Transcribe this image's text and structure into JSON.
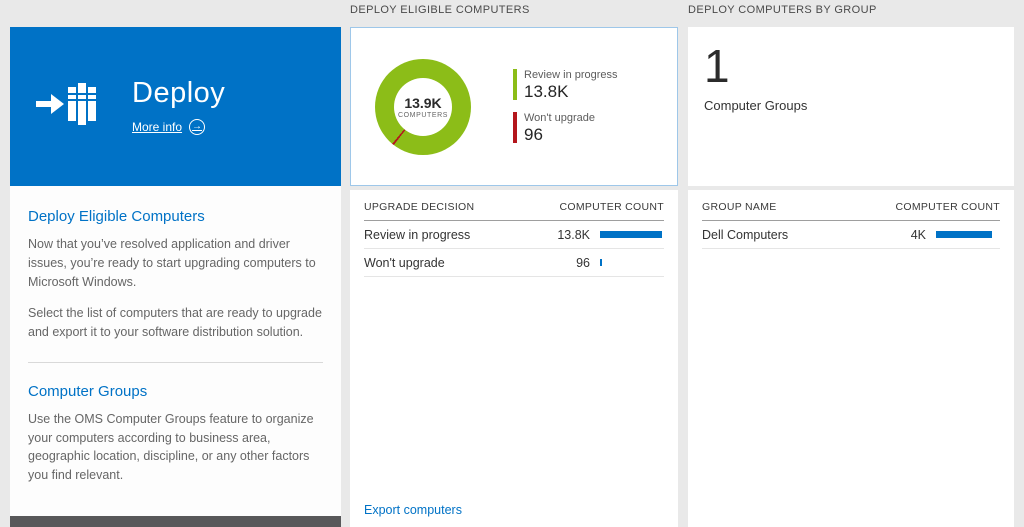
{
  "colors": {
    "tile_blue": "#0072c6",
    "bar_blue": "#0072c6",
    "green": "#8cbd18",
    "red": "#b4161c",
    "footer_dark": "#58585a"
  },
  "left_tile": {
    "title": "Deploy",
    "more_info_label": "More info",
    "arrow_glyph": "→"
  },
  "left_panel": {
    "section1": {
      "heading": "Deploy Eligible Computers",
      "para1": "Now that you’ve resolved application and driver issues, you’re ready to start upgrading computers to Microsoft Windows.",
      "para2": "Select the list of computers that are ready to upgrade and export it to your software distribution solution."
    },
    "section2": {
      "heading": "Computer Groups",
      "para1": "Use the OMS Computer Groups feature to organize your computers according to business area, geographic location, discipline, or any other factors you find relevant."
    }
  },
  "middle": {
    "header": "DEPLOY ELIGIBLE COMPUTERS",
    "donut": {
      "center_value": "13.9K",
      "center_label": "COMPUTERS",
      "legend": [
        {
          "label": "Review in progress",
          "value": "13.8K",
          "color": "#8cbd18"
        },
        {
          "label": "Won't upgrade",
          "value": "96",
          "color": "#b4161c"
        }
      ]
    },
    "table": {
      "col_left": "UPGRADE DECISION",
      "col_right": "COMPUTER COUNT",
      "rows": [
        {
          "label": "Review in progress",
          "value": "13.8K",
          "bar_pct": 97
        },
        {
          "label": "Won't upgrade",
          "value": "96",
          "bar_pct": 2
        }
      ]
    },
    "export_label": "Export computers"
  },
  "right": {
    "header": "DEPLOY COMPUTERS BY GROUP",
    "summary": {
      "count": "1",
      "label": "Computer Groups"
    },
    "table": {
      "col_left": "GROUP NAME",
      "col_right": "COMPUTER COUNT",
      "rows": [
        {
          "label": "Dell Computers",
          "value": "4K",
          "bar_pct": 88
        }
      ]
    }
  },
  "chart_data": [
    {
      "type": "pie",
      "title": "Deploy Eligible Computers",
      "center_value": "13.9K",
      "center_label": "COMPUTERS",
      "slices": [
        {
          "label": "Review in progress",
          "value": 13800,
          "pct": 99.3,
          "color": "#8cbd18"
        },
        {
          "label": "Won't upgrade",
          "value": 96,
          "pct": 0.7,
          "color": "#b4161c"
        }
      ],
      "legend_position": "right"
    },
    {
      "type": "bar",
      "title": "Upgrade Decision",
      "categories": [
        "Review in progress",
        "Won't upgrade"
      ],
      "values": [
        13800,
        96
      ],
      "value_labels": [
        "13.8K",
        "96"
      ],
      "bar_color": "#0072c6"
    },
    {
      "type": "bar",
      "title": "Computers by Group",
      "categories": [
        "Dell Computers"
      ],
      "values": [
        4000
      ],
      "value_labels": [
        "4K"
      ],
      "bar_color": "#0072c6"
    }
  ]
}
